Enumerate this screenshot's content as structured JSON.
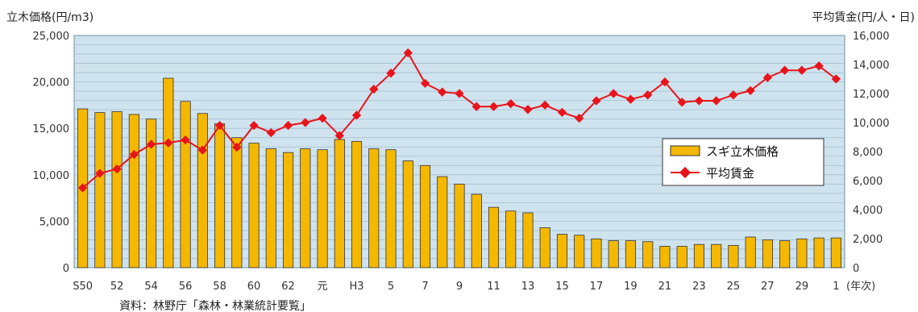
{
  "colors": {
    "plot_bg": "#cfe3ee",
    "grid": "#9fbfd3",
    "bar_fill": "#f5b800",
    "bar_stroke": "#333333",
    "line": "#e8141b"
  },
  "chart_data": {
    "type": "bar",
    "title": "",
    "left_axis_title": "立木価格(円/m3)",
    "right_axis_title": "平均賃金(円/人・日)",
    "x_unit_label": "(年次)",
    "source_note": "資料：林野庁「森林・林業統計要覧」",
    "left_ylim": [
      0,
      25000
    ],
    "left_ticks": [
      "0",
      "5,000",
      "10,000",
      "15,000",
      "20,000",
      "25,000"
    ],
    "right_ylim": [
      0,
      16000
    ],
    "right_ticks": [
      "0",
      "2,000",
      "4,000",
      "6,000",
      "8,000",
      "10,000",
      "12,000",
      "14,000",
      "16,000"
    ],
    "grid": true,
    "legend_position": "middle-right",
    "x_tick_labels": [
      "S50",
      "",
      "52",
      "",
      "54",
      "",
      "56",
      "",
      "58",
      "",
      "60",
      "",
      "62",
      "",
      "元",
      "",
      "H3",
      "",
      "5",
      "",
      "7",
      "",
      "9",
      "",
      "11",
      "",
      "13",
      "",
      "15",
      "",
      "17",
      "",
      "19",
      "",
      "21",
      "",
      "23",
      "",
      "25",
      "",
      "27",
      "",
      "29",
      "",
      "1"
    ],
    "series": [
      {
        "name": "スギ立木価格",
        "kind": "bar",
        "axis": "left",
        "values": [
          17100,
          16700,
          16800,
          16500,
          16000,
          20400,
          17900,
          16600,
          15500,
          14000,
          13400,
          12800,
          12400,
          12800,
          12700,
          13800,
          13600,
          12800,
          12700,
          11500,
          11000,
          9800,
          9000,
          7900,
          6500,
          6100,
          5900,
          4300,
          3600,
          3500,
          3100,
          2900,
          2900,
          2800,
          2300,
          2300,
          2500,
          2500,
          2400,
          3300,
          3000,
          2900,
          3100,
          3200,
          3200
        ]
      },
      {
        "name": "平均賃金",
        "kind": "line",
        "axis": "right",
        "values": [
          5500,
          6500,
          6800,
          7800,
          8500,
          8600,
          8800,
          8100,
          9800,
          8300,
          9800,
          9300,
          9800,
          10000,
          10300,
          9100,
          10500,
          12300,
          13400,
          14800,
          12700,
          12100,
          12000,
          11100,
          11100,
          11300,
          10900,
          11200,
          10700,
          10300,
          11500,
          12000,
          11600,
          11900,
          12800,
          11400,
          11500,
          11500,
          11900,
          12200,
          13100,
          13600,
          13600,
          13900,
          13000
        ]
      }
    ]
  }
}
